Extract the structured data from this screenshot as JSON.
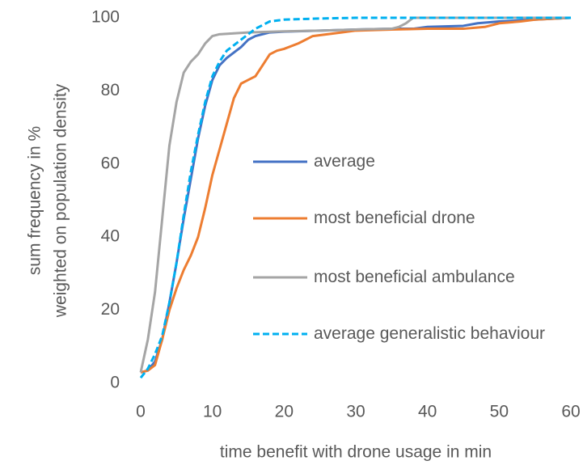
{
  "chart_data": {
    "type": "line",
    "xlabel": "time benefit with drone usage in min",
    "ylabel": [
      "sum frequency in %",
      "weighted on population density"
    ],
    "xlim": [
      0,
      60
    ],
    "xticks": [
      0,
      10,
      20,
      30,
      40,
      50,
      60
    ],
    "ylim": [
      0,
      100
    ],
    "yticks": [
      0,
      20,
      40,
      60,
      80,
      100
    ],
    "series": [
      {
        "name": "average",
        "color": "#4472c4",
        "dash": false,
        "x": [
          0,
          1,
          2,
          3,
          4,
          5,
          6,
          7,
          8,
          9,
          10,
          11,
          12,
          13,
          14,
          15,
          16,
          17,
          18,
          20,
          25,
          30,
          35,
          38,
          40,
          45,
          47,
          50,
          55,
          60
        ],
        "values": [
          3,
          3.5,
          6,
          12,
          22,
          33,
          45,
          56,
          67,
          76,
          83,
          87,
          89,
          90.5,
          92,
          94,
          95,
          95.5,
          96,
          96.2,
          96.5,
          96.8,
          97,
          97,
          97.5,
          97.8,
          98.5,
          99,
          99.5,
          100
        ]
      },
      {
        "name": "most beneficial drone",
        "color": "#ed7d31",
        "dash": false,
        "x": [
          0,
          1,
          2,
          3,
          4,
          5,
          6,
          7,
          8,
          9,
          10,
          11,
          12,
          13,
          14,
          15,
          16,
          17,
          18,
          19,
          20,
          22,
          24,
          26,
          28,
          30,
          35,
          40,
          45,
          48,
          50,
          53,
          55,
          60
        ],
        "values": [
          3,
          3.5,
          5,
          12,
          20,
          26,
          31,
          35,
          40,
          48,
          57,
          64,
          71,
          78,
          82,
          83,
          84,
          87,
          90,
          91,
          91.5,
          93,
          95,
          95.5,
          96,
          96.5,
          96.8,
          97,
          97,
          97.5,
          98.5,
          99,
          99.5,
          100
        ]
      },
      {
        "name": "most beneficial ambulance",
        "color": "#a5a5a5",
        "dash": false,
        "x": [
          0,
          1,
          2,
          3,
          4,
          5,
          6,
          7,
          8,
          9,
          10,
          11,
          15,
          20,
          25,
          30,
          35,
          36,
          37,
          38,
          60
        ],
        "values": [
          3,
          12,
          25,
          45,
          65,
          77,
          85,
          88,
          90,
          93,
          95,
          95.5,
          96,
          96.3,
          96.5,
          96.8,
          97,
          97.5,
          98.5,
          100,
          100
        ]
      },
      {
        "name": "average generalistic behaviour",
        "color": "#00b0f0",
        "dash": true,
        "x": [
          0,
          1,
          2,
          3,
          4,
          5,
          6,
          7,
          8,
          9,
          10,
          11,
          12,
          13,
          14,
          15,
          16,
          17,
          18,
          20,
          25,
          30,
          60
        ],
        "values": [
          1.5,
          4,
          8,
          13,
          22,
          33,
          46,
          58,
          68,
          77,
          84,
          88,
          91,
          92.5,
          94,
          95.5,
          97,
          98,
          99,
          99.5,
          99.8,
          100,
          100
        ]
      }
    ]
  }
}
